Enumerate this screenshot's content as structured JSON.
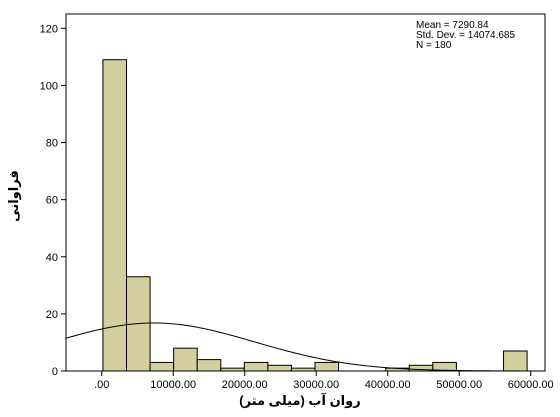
{
  "chart_data": {
    "type": "bar",
    "subtype": "histogram",
    "title": "",
    "xlabel": "روان آب (میلی متر)",
    "ylabel": "فراوانی",
    "xlim": [
      -5000,
      62000
    ],
    "ylim": [
      0,
      125
    ],
    "x_ticks": [
      0,
      10000,
      20000,
      30000,
      40000,
      50000,
      60000
    ],
    "x_tick_labels": [
      ".00",
      "10000.00",
      "20000.00",
      "30000.00",
      "40000.00",
      "50000.00",
      "60000.00"
    ],
    "y_ticks": [
      0,
      20,
      40,
      60,
      80,
      100,
      120
    ],
    "y_tick_labels": [
      "0",
      "20",
      "40",
      "60",
      "80",
      "100",
      "120"
    ],
    "bin_width": 3296,
    "bin_starts": [
      168,
      3464,
      6760,
      10056,
      13352,
      16648,
      19944,
      23240,
      26536,
      29832,
      33128,
      36424,
      39720,
      43016,
      46312,
      49608,
      52904,
      56200
    ],
    "values": [
      109,
      33,
      3,
      8,
      4,
      1,
      3,
      2,
      1,
      3,
      0,
      0,
      1,
      2,
      3,
      0,
      0,
      7
    ],
    "bar_color": "#d4cf9e",
    "bar_stroke": "#000000",
    "normal_curve": {
      "mean": 7290.84,
      "std": 14074.685,
      "n": 180
    },
    "stats": {
      "mean_label": "Mean = 7290.84",
      "std_label": "Std. Dev. = 14074.685",
      "n_label": "N = 180"
    },
    "grid": false,
    "legend": "none"
  }
}
